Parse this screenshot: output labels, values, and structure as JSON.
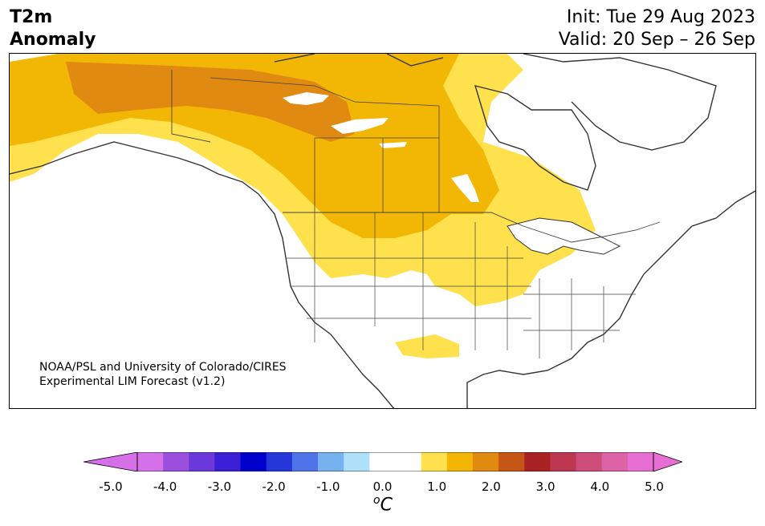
{
  "title": {
    "variable": "T2m",
    "subtitle": "Anomaly",
    "init": "Init: Tue 29 Aug 2023",
    "valid": "Valid: 20 Sep – 26 Sep"
  },
  "credit": {
    "line1": "NOAA/PSL and University of Colorado/CIRES",
    "line2": "Experimental LIM Forecast (v1.2)"
  },
  "map": {
    "region": "North America",
    "anomaly_colors": {
      "0.5_to_1.0": "#fee14c",
      "1.0_to_1.5": "#f2b705",
      "1.5_to_2.0": "#e08a12",
      "water": "#ffffff",
      "coast": "#333333"
    }
  },
  "colorbar": {
    "ticks": [
      "-5.0",
      "-4.0",
      "-3.0",
      "-2.0",
      "-1.0",
      "0.0",
      "1.0",
      "2.0",
      "3.0",
      "4.0",
      "5.0"
    ],
    "colors": [
      "#d670e8",
      "#9b4fdf",
      "#6b38dc",
      "#3b1fd6",
      "#0000cc",
      "#2437db",
      "#4f73e8",
      "#78b1f0",
      "#aee0f9",
      "#ffffff",
      "#ffffff",
      "#fee14c",
      "#f2b705",
      "#e08a12",
      "#c65516",
      "#ab2224",
      "#bd3750",
      "#cf4d7a",
      "#dd62a6",
      "#e76fd3"
    ],
    "under_color": "#d670e8",
    "over_color": "#e76fd3",
    "unit_symbol": "o",
    "unit_letter": "C"
  }
}
